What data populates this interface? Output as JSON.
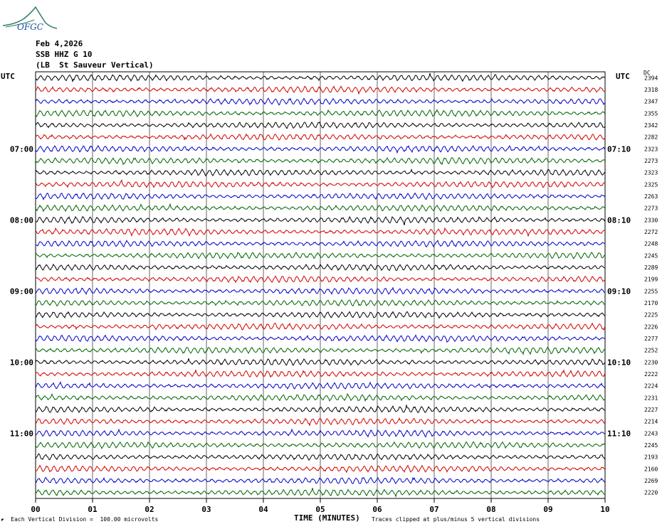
{
  "logo": {
    "text": "OFGC",
    "color": "#2e7d6e",
    "accent": "#1a4fa0"
  },
  "header": {
    "date": "Feb 4,2026",
    "station": "SSB HHZ G 10",
    "location": "(LB  St Sauveur Vertical)"
  },
  "axis": {
    "left_utc_label": "UTC",
    "right_utc_label": "UTC",
    "dc_label": "DC",
    "xlabel": "TIME (MINUTES)"
  },
  "footer": {
    "scale_note": "Each Vertical Division =  100.00 microvolts",
    "clip_note": "Traces clipped at plus/minus 5 vertical divisions"
  },
  "chart_data": {
    "type": "line",
    "x_ticks": [
      "00",
      "01",
      "02",
      "03",
      "04",
      "05",
      "06",
      "07",
      "08",
      "09",
      "10"
    ],
    "xlim": [
      0,
      10
    ],
    "trace_colors": [
      "#000000",
      "#d40000",
      "#0000c8",
      "#006400"
    ],
    "left_time_labels": [
      {
        "row": 6,
        "label": "07:00"
      },
      {
        "row": 12,
        "label": "08:00"
      },
      {
        "row": 18,
        "label": "09:00"
      },
      {
        "row": 24,
        "label": "10:00"
      },
      {
        "row": 30,
        "label": "11:00"
      }
    ],
    "right_time_labels": [
      {
        "row": 6,
        "label": "07:10"
      },
      {
        "row": 12,
        "label": "08:10"
      },
      {
        "row": 18,
        "label": "09:10"
      },
      {
        "row": 24,
        "label": "10:10"
      },
      {
        "row": 30,
        "label": "11:10"
      }
    ],
    "dc_values": [
      "2394",
      "2318",
      "2347",
      "2355",
      "2342",
      "2282",
      "2323",
      "2273",
      "2323",
      "2325",
      "2263",
      "2273",
      "2330",
      "2272",
      "2248",
      "2245",
      "2289",
      "2199",
      "2255",
      "2170",
      "2225",
      "2226",
      "2277",
      "2252",
      "2230",
      "2222",
      "2224",
      "2231",
      "2227",
      "2214",
      "2243",
      "2245",
      "2193",
      "2160",
      "2269",
      "2220"
    ],
    "grid": true
  }
}
